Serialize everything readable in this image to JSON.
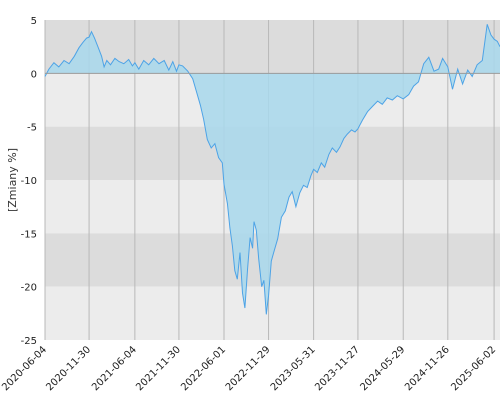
{
  "chart_data": {
    "type": "area",
    "title": "",
    "xlabel": "",
    "ylabel": "[Zmiany %]",
    "x_ticks": [
      "2020-06-04",
      "2020-11-30",
      "2021-06-04",
      "2021-11-30",
      "2022-06-01",
      "2022-11-29",
      "2023-05-31",
      "2023-11-27",
      "2024-05-29",
      "2024-11-26",
      "2025-06-02"
    ],
    "y_ticks": [
      5,
      0,
      -5,
      -10,
      -15,
      -20,
      -25
    ],
    "ylim": [
      -25,
      5
    ],
    "xlim": [
      "2020-06-04",
      "2025-06-26"
    ],
    "grid": true,
    "colors": {
      "line": "#4da3e6",
      "fill": "#a8d8ec",
      "band_dark": "#dcdcdc",
      "band_light": "#ececec",
      "grid_line": "#b8b8b8",
      "zero_line": "#9a9a9a"
    },
    "series": [
      {
        "x": [
          "2020-06-04",
          "2020-06-20",
          "2020-07-10",
          "2020-07-30",
          "2020-08-20",
          "2020-09-10",
          "2020-10-01",
          "2020-10-20",
          "2020-11-05",
          "2020-11-20",
          "2020-11-30",
          "2020-12-10",
          "2020-12-22",
          "2021-01-05",
          "2021-01-20",
          "2021-01-30",
          "2021-02-10",
          "2021-02-25",
          "2021-03-15",
          "2021-04-01",
          "2021-04-20",
          "2021-05-10",
          "2021-05-25",
          "2021-06-04",
          "2021-06-20",
          "2021-07-10",
          "2021-07-30",
          "2021-08-20",
          "2021-09-10",
          "2021-10-01",
          "2021-10-20",
          "2021-11-05",
          "2021-11-20",
          "2021-11-30",
          "2021-12-15",
          "2022-01-05",
          "2022-01-25",
          "2022-02-10",
          "2022-02-25",
          "2022-03-10",
          "2022-03-25",
          "2022-04-10",
          "2022-04-25",
          "2022-05-10",
          "2022-05-25",
          "2022-06-01",
          "2022-06-15",
          "2022-06-25",
          "2022-07-05",
          "2022-07-15",
          "2022-07-25",
          "2022-08-05",
          "2022-08-15",
          "2022-08-25",
          "2022-09-05",
          "2022-09-15",
          "2022-09-25",
          "2022-10-01",
          "2022-10-10",
          "2022-10-20",
          "2022-11-01",
          "2022-11-10",
          "2022-11-20",
          "2022-11-29",
          "2022-12-10",
          "2022-12-20",
          "2023-01-05",
          "2023-01-20",
          "2023-02-05",
          "2023-02-20",
          "2023-03-05",
          "2023-03-20",
          "2023-04-05",
          "2023-04-20",
          "2023-05-05",
          "2023-05-20",
          "2023-05-31",
          "2023-06-15",
          "2023-07-01",
          "2023-07-15",
          "2023-08-01",
          "2023-08-15",
          "2023-09-01",
          "2023-09-15",
          "2023-10-01",
          "2023-10-15",
          "2023-11-01",
          "2023-11-15",
          "2023-11-27",
          "2023-12-15",
          "2024-01-05",
          "2024-01-25",
          "2024-02-15",
          "2024-03-05",
          "2024-03-25",
          "2024-04-15",
          "2024-05-05",
          "2024-05-29",
          "2024-06-20",
          "2024-07-10",
          "2024-07-30",
          "2024-08-20",
          "2024-09-10",
          "2024-10-01",
          "2024-10-20",
          "2024-11-05",
          "2024-11-26",
          "2024-12-15",
          "2025-01-05",
          "2025-01-25",
          "2025-02-15",
          "2025-03-05",
          "2025-03-25",
          "2025-04-15",
          "2025-05-05",
          "2025-05-20",
          "2025-06-02",
          "2025-06-15",
          "2025-06-26"
        ],
        "values": [
          -0.3,
          0.4,
          1.0,
          0.6,
          1.2,
          0.9,
          1.6,
          2.4,
          2.9,
          3.3,
          3.4,
          3.9,
          3.3,
          2.5,
          1.6,
          0.6,
          1.2,
          0.8,
          1.4,
          1.1,
          0.9,
          1.3,
          0.7,
          1.0,
          0.4,
          1.2,
          0.8,
          1.4,
          0.9,
          1.2,
          0.3,
          1.1,
          0.2,
          0.8,
          0.7,
          0.2,
          -0.5,
          -1.8,
          -3.0,
          -4.3,
          -6.2,
          -7.0,
          -6.6,
          -7.9,
          -8.4,
          -10.4,
          -12.2,
          -14.5,
          -16.2,
          -18.5,
          -19.3,
          -16.8,
          -20.6,
          -22.0,
          -18.3,
          -15.4,
          -16.4,
          -13.9,
          -14.7,
          -17.4,
          -20.0,
          -19.4,
          -22.6,
          -20.8,
          -17.6,
          -16.8,
          -15.5,
          -13.5,
          -12.9,
          -11.6,
          -11.1,
          -12.5,
          -11.2,
          -10.5,
          -10.7,
          -9.6,
          -9.0,
          -9.3,
          -8.4,
          -8.8,
          -7.6,
          -7.0,
          -7.4,
          -6.9,
          -6.1,
          -5.7,
          -5.3,
          -5.5,
          -5.2,
          -4.4,
          -3.6,
          -3.1,
          -2.6,
          -2.9,
          -2.3,
          -2.5,
          -2.1,
          -2.4,
          -2.0,
          -1.2,
          -0.8,
          0.9,
          1.5,
          0.2,
          0.4,
          1.4,
          0.6,
          -1.5,
          0.4,
          -1.0,
          0.3,
          -0.3,
          0.8,
          1.2,
          4.6,
          3.6,
          3.2,
          3.0,
          2.5
        ]
      }
    ]
  }
}
